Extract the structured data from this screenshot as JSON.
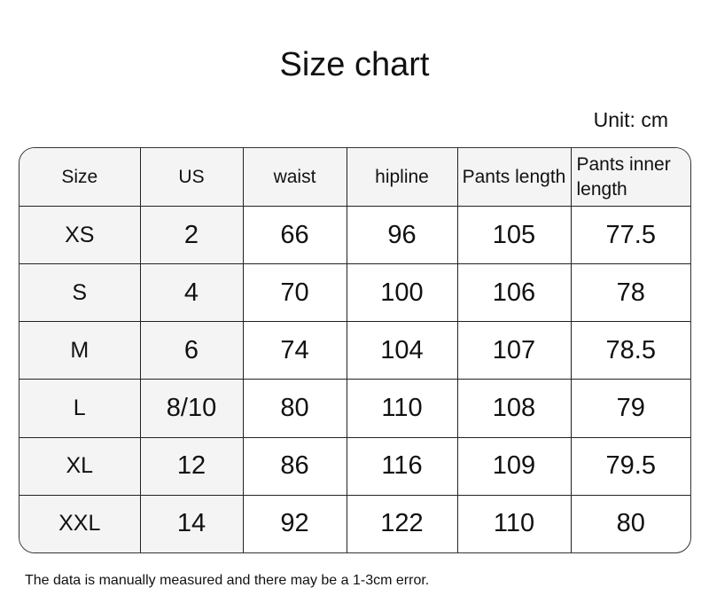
{
  "title": "Size chart",
  "unit": "Unit: cm",
  "table": {
    "headers": [
      "Size",
      "US",
      "waist",
      "hipline",
      "Pants length",
      "Pants inner length"
    ],
    "rows": [
      [
        "XS",
        "2",
        "66",
        "96",
        "105",
        "77.5"
      ],
      [
        "S",
        "4",
        "70",
        "100",
        "106",
        "78"
      ],
      [
        "M",
        "6",
        "74",
        "104",
        "107",
        "78.5"
      ],
      [
        "L",
        "8/10",
        "80",
        "110",
        "108",
        "79"
      ],
      [
        "XL",
        "12",
        "86",
        "116",
        "109",
        "79.5"
      ],
      [
        "XXL",
        "14",
        "92",
        "122",
        "110",
        "80"
      ]
    ]
  },
  "note": "The data is manually measured and there may be a 1-3cm error.",
  "colors": {
    "header_bg": "#f4f4f4",
    "border": "#222222"
  }
}
